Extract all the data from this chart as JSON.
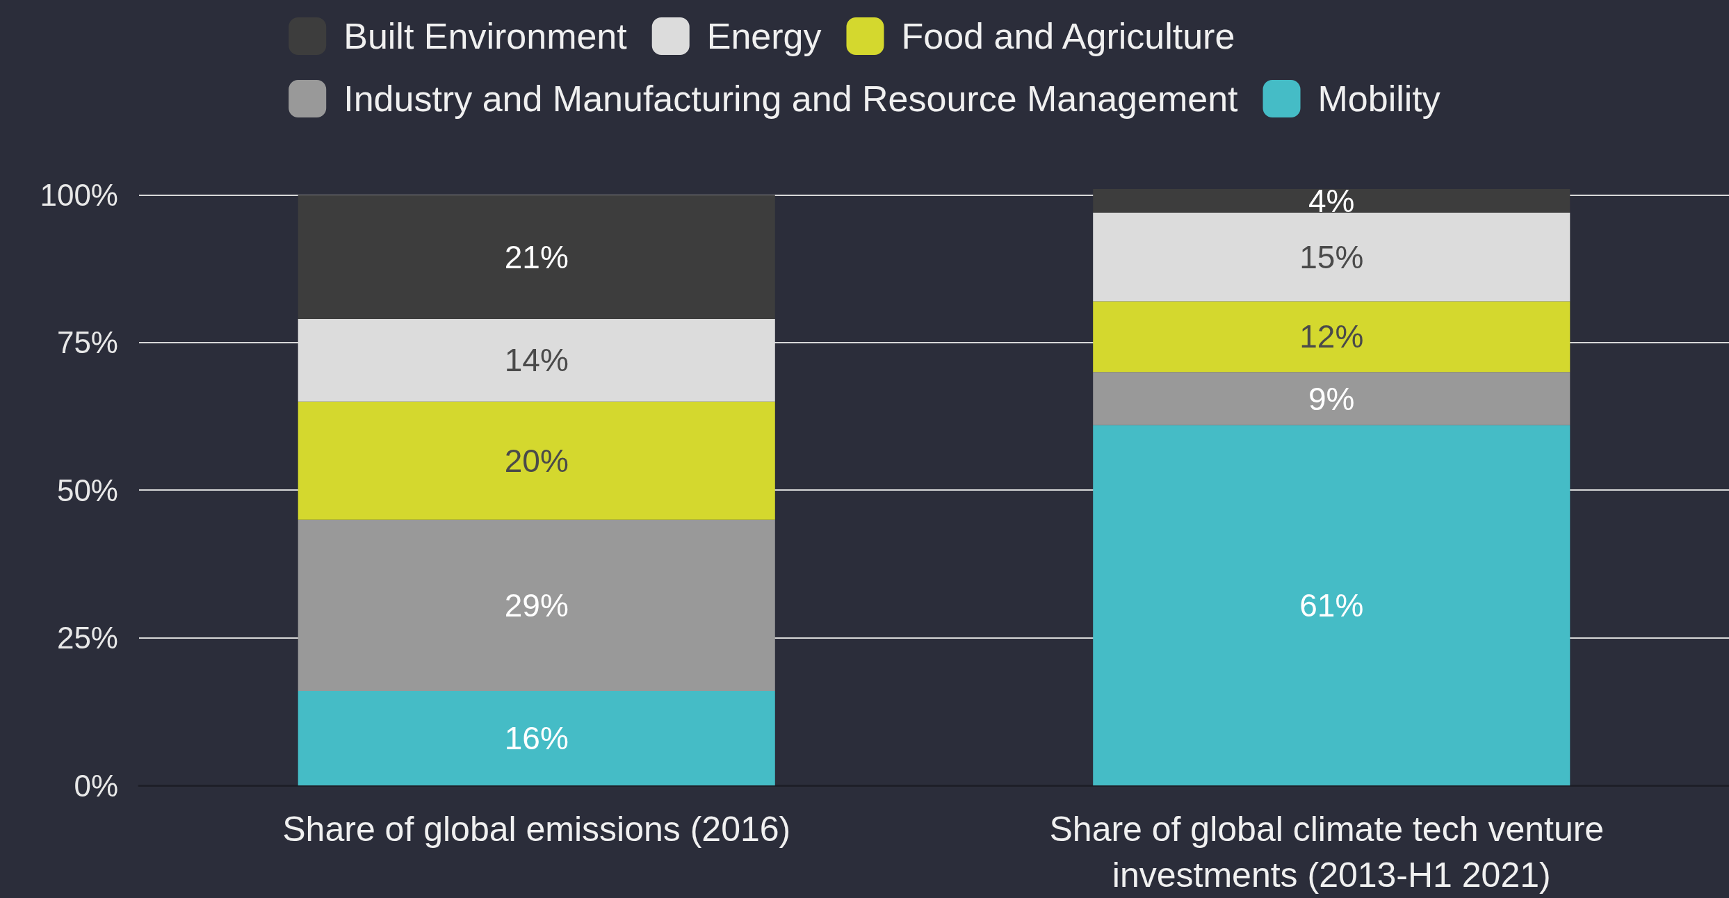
{
  "chart_data": {
    "type": "bar",
    "stacked": true,
    "categories": [
      "Share of global emissions (2016)",
      "Share of global climate tech venture investments (2013-H1 2021)"
    ],
    "series": [
      {
        "name": "Mobility",
        "color": "#45bcc6",
        "values": [
          16,
          61
        ],
        "value_labels": [
          "16%",
          "61%"
        ]
      },
      {
        "name": "Industry and Manufacturing and Resource Management",
        "color": "#999999",
        "values": [
          29,
          9
        ],
        "value_labels": [
          "29%",
          "9%"
        ]
      },
      {
        "name": "Food and Agriculture",
        "color": "#d4d82e",
        "values": [
          20,
          12
        ],
        "value_labels": [
          "20%",
          "12%"
        ]
      },
      {
        "name": "Energy",
        "color": "#dcdcdc",
        "values": [
          14,
          15
        ],
        "value_labels": [
          "14%",
          "15%"
        ]
      },
      {
        "name": "Built Environment",
        "color": "#3d3d3d",
        "values": [
          21,
          4
        ],
        "value_labels": [
          "21%",
          "4%"
        ]
      }
    ],
    "ylim": [
      0,
      101
    ],
    "yticks": [
      {
        "value": 0,
        "label": "0%"
      },
      {
        "value": 25,
        "label": "25%"
      },
      {
        "value": 50,
        "label": "50%"
      },
      {
        "value": 75,
        "label": "75%"
      },
      {
        "value": 100,
        "label": "100%"
      }
    ],
    "grid": "y",
    "legend": "top"
  }
}
